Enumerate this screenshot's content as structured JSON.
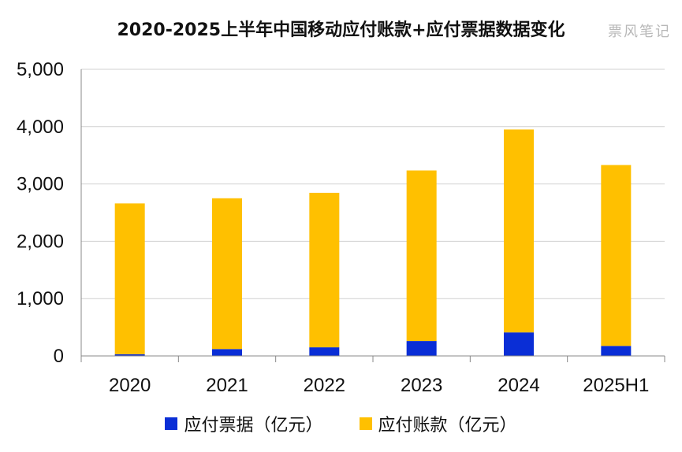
{
  "title": "2020-2025上半年中国移动应付账款+应付票据数据变化",
  "watermark": "票风笔记",
  "colors": {
    "notes": "#0A2ED6",
    "accounts": "#FFC000",
    "grid": "#d0d0d0",
    "axis": "#888888"
  },
  "chart_data": {
    "type": "bar",
    "stacked": true,
    "title": "2020-2025上半年中国移动应付账款+应付票据数据变化",
    "categories": [
      "2020",
      "2021",
      "2022",
      "2023",
      "2024",
      "2025H1"
    ],
    "series": [
      {
        "name": "应付票据（亿元）",
        "values": [
          30,
          120,
          150,
          260,
          410,
          175
        ]
      },
      {
        "name": "应付账款（亿元）",
        "values": [
          2630,
          2630,
          2695,
          2975,
          3540,
          3155
        ]
      }
    ],
    "ylim": [
      0,
      5000
    ],
    "yticks": [
      0,
      1000,
      2000,
      3000,
      4000,
      5000
    ],
    "ytick_labels": [
      "0",
      "1,000",
      "2,000",
      "3,000",
      "4,000",
      "5,000"
    ],
    "grid": true,
    "legend_position": "bottom"
  }
}
